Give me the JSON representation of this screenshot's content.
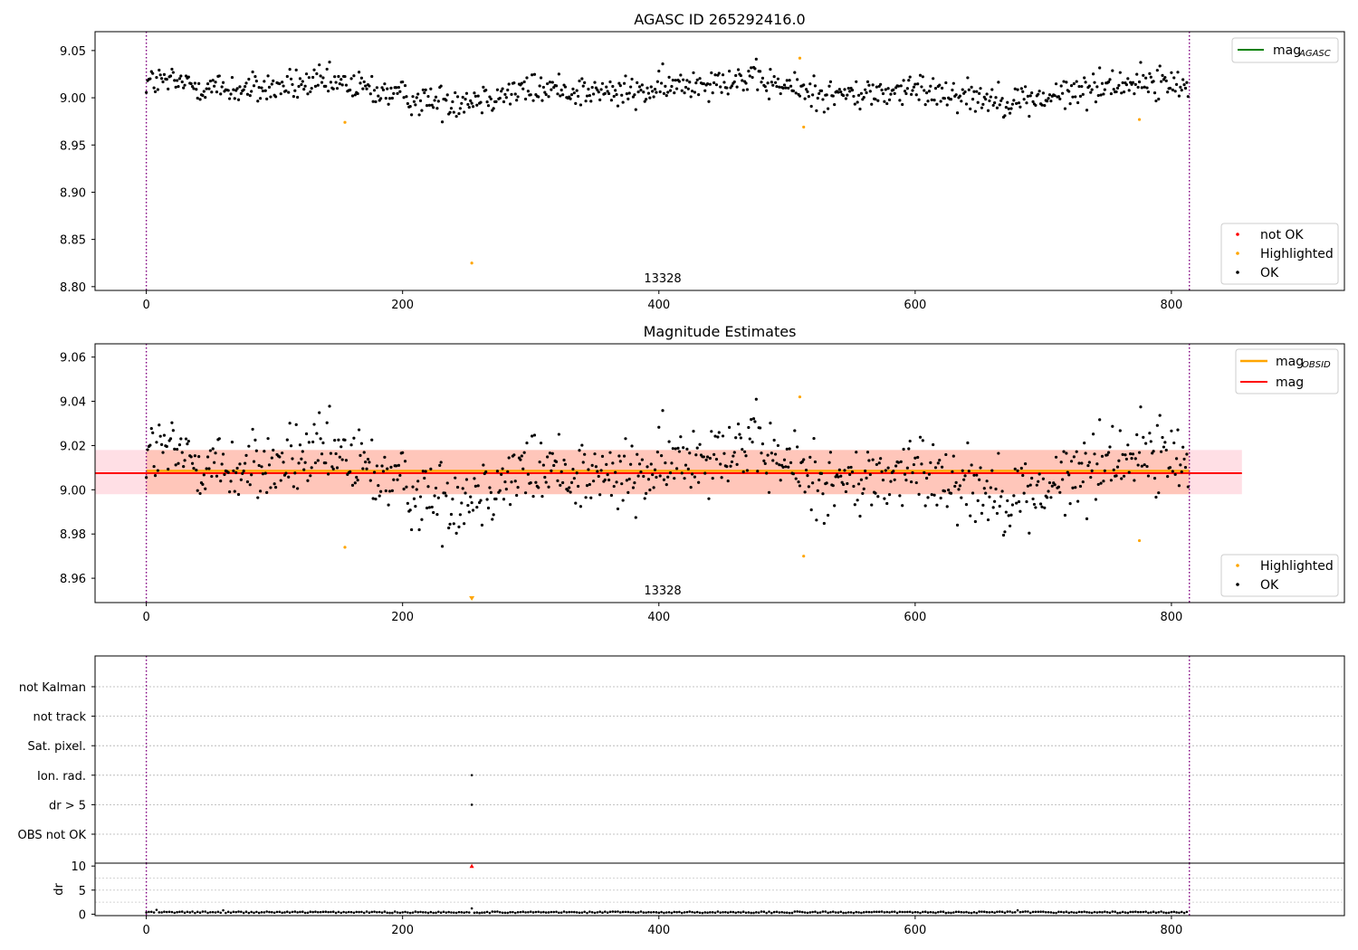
{
  "chart_data": [
    {
      "type": "scatter",
      "title": "AGASC ID 265292416.0",
      "xlim": [
        -40,
        935
      ],
      "ylim": [
        8.796,
        9.07
      ],
      "xticks": [
        0,
        200,
        400,
        600,
        800
      ],
      "yticks": [
        8.8,
        8.85,
        8.9,
        8.95,
        9.0,
        9.05
      ],
      "ytick_labels": [
        "8.80",
        "8.85",
        "8.90",
        "8.95",
        "9.00",
        "9.05"
      ],
      "obsid_bounds": [
        0,
        814
      ],
      "obsid_label": "13328",
      "obsid_label_x": 407,
      "series": [
        {
          "name": "not OK",
          "color": "#ff0000",
          "points": []
        },
        {
          "name": "Highlighted",
          "color": "#ffa500",
          "points": [
            [
              155,
              8.974
            ],
            [
              254,
              8.825
            ],
            [
              510,
              9.042
            ],
            [
              513,
              8.969
            ],
            [
              775,
              8.977
            ]
          ]
        },
        {
          "name": "OK",
          "color": "#000000",
          "trend": {
            "n": 814,
            "base": 9.008,
            "amp": 0.012,
            "noise": 0.0085
          }
        }
      ],
      "lines": [
        {
          "name": "mag",
          "name_sub": "AGASC",
          "color": "#008000",
          "y": 8.7
        }
      ],
      "legend_lines_position": "upper right",
      "legend_points_position": "lower right"
    },
    {
      "type": "scatter",
      "title": "Magnitude Estimates",
      "xlim": [
        -40,
        935
      ],
      "ylim": [
        8.949,
        9.066
      ],
      "xticks": [
        0,
        200,
        400,
        600,
        800
      ],
      "yticks": [
        8.96,
        8.98,
        9.0,
        9.02,
        9.04,
        9.06
      ],
      "ytick_labels": [
        "8.96",
        "8.98",
        "9.00",
        "9.02",
        "9.04",
        "9.06"
      ],
      "obsid_bounds": [
        0,
        814
      ],
      "obsid_label": "13328",
      "obsid_label_x": 407,
      "bands": [
        {
          "x": [
            -40,
            855
          ],
          "y": [
            8.998,
            9.018
          ],
          "color": "#ffc0cb",
          "opacity": 0.5
        },
        {
          "x": [
            0,
            814
          ],
          "y": [
            8.998,
            9.018
          ],
          "color": "#ffa07a",
          "opacity": 0.4
        }
      ],
      "lines": [
        {
          "name": "mag",
          "name_sub": "OBSID",
          "color": "#ffa500",
          "y": 9.0085,
          "x": [
            0,
            814
          ]
        },
        {
          "name": "mag",
          "name_sub": "",
          "color": "#ff0000",
          "y": 9.0075,
          "x": [
            -40,
            855
          ]
        }
      ],
      "series": [
        {
          "name": "Highlighted",
          "color": "#ffa500",
          "points": [
            [
              155,
              8.974
            ],
            [
              510,
              9.042
            ],
            [
              513,
              8.97
            ],
            [
              775,
              8.977
            ]
          ],
          "below_axis": [
            254
          ]
        },
        {
          "name": "OK",
          "color": "#000000",
          "trend": "same as panel 1"
        }
      ],
      "legend_lines_position": "upper right",
      "legend_points_position": "lower right"
    },
    {
      "type": "scatter",
      "xlim": [
        -40,
        935
      ],
      "obsid_bounds": [
        0,
        814
      ],
      "flag_categories": [
        "not Kalman",
        "not track",
        "Sat. pixel.",
        "Ion. rad.",
        "dr > 5",
        "OBS not OK"
      ],
      "flag_points": [
        {
          "category": "Ion. rad.",
          "x": 254
        },
        {
          "category": "dr > 5",
          "x": 254
        }
      ]
    },
    {
      "type": "scatter",
      "ylabel": "dr",
      "xlim": [
        -40,
        935
      ],
      "ylim": [
        -0.3,
        10.6
      ],
      "xticks": [
        0,
        200,
        400,
        600,
        800
      ],
      "yticks": [
        0,
        5,
        10
      ],
      "ytick_labels": [
        "0",
        "5",
        "10"
      ],
      "obsid_bounds": [
        0,
        814
      ],
      "series": [
        {
          "name": "dr",
          "color": "#000000",
          "typical": 0.4,
          "spikes": [
            [
              8,
              0.9
            ],
            [
              60,
              0.8
            ],
            [
              254,
              1.2
            ],
            [
              555,
              0.8
            ],
            [
              680,
              0.8
            ]
          ]
        },
        {
          "name": "clipped",
          "color": "#ff0000",
          "points": [
            [
              254,
              10
            ]
          ]
        }
      ]
    }
  ]
}
